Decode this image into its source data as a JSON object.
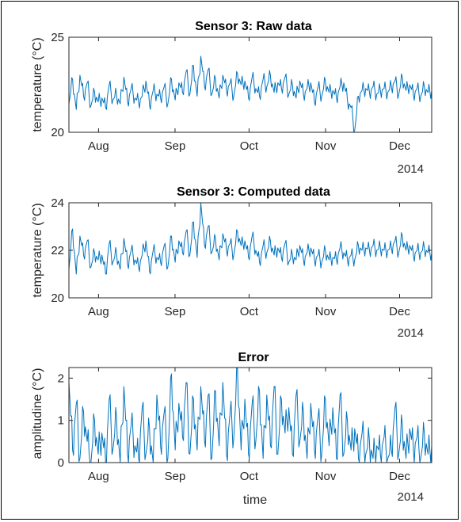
{
  "chart_data": [
    {
      "type": "line",
      "title": "Sensor 3: Raw data",
      "xlabel": "",
      "ylabel": "temperature (°C)",
      "ylim": [
        20,
        25
      ],
      "yticks": [
        20,
        25
      ],
      "xticks": [
        "Aug",
        "Sep",
        "Oct",
        "Nov",
        "Dec"
      ],
      "year_label": "2014",
      "xlim": [
        "2014-07-20",
        "2014-12-14"
      ],
      "grid": false,
      "color": "#0072BD",
      "series": [
        {
          "x_start": "2014-07-20",
          "x_end": "2014-12-14",
          "values": [
            21.5,
            22.8,
            21.2,
            23.0,
            21.9,
            22.6,
            21.4,
            22.1,
            21.6,
            21.8,
            21.3,
            22.5,
            21.7,
            22.0,
            21.5,
            22.9,
            21.6,
            22.3,
            21.8,
            21.6,
            21.9,
            22.7,
            21.4,
            22.2,
            22.0,
            21.8,
            22.4,
            21.5,
            22.8,
            21.7,
            22.6,
            22.1,
            23.2,
            22.0,
            23.5,
            21.9,
            24.0,
            22.4,
            23.3,
            22.0,
            22.8,
            21.8,
            23.0,
            22.2,
            22.6,
            21.9,
            23.1,
            22.5,
            22.7,
            21.8,
            22.9,
            22.3,
            21.9,
            22.8,
            22.4,
            23.0,
            22.1,
            22.6,
            22.3,
            22.9,
            22.0,
            22.5,
            21.8,
            22.7,
            22.0,
            22.3,
            22.6,
            21.6,
            22.4,
            21.9,
            22.7,
            22.1,
            22.2,
            21.8,
            22.4,
            22.6,
            21.7,
            21.3,
            20.1,
            21.9,
            22.2,
            22.3,
            22.1,
            22.4,
            22.0,
            22.2,
            22.3,
            22.1,
            22.4,
            22.7,
            22.0,
            22.9,
            22.2,
            22.5,
            22.0,
            22.3,
            21.9,
            22.4,
            22.1,
            22.2
          ]
        }
      ]
    },
    {
      "type": "line",
      "title": "Sensor 3: Computed data",
      "xlabel": "",
      "ylabel": "temperature (°C)",
      "ylim": [
        20,
        24
      ],
      "yticks": [
        20,
        22,
        24
      ],
      "xticks": [
        "Aug",
        "Sep",
        "Oct",
        "Nov",
        "Dec"
      ],
      "year_label": "2014",
      "xlim": [
        "2014-07-20",
        "2014-12-14"
      ],
      "grid": false,
      "color": "#0072BD",
      "series": [
        {
          "x_start": "2014-07-20",
          "x_end": "2014-12-14",
          "values": [
            21.2,
            22.9,
            21.0,
            22.6,
            21.8,
            22.4,
            21.3,
            21.9,
            21.6,
            21.8,
            21.0,
            22.3,
            21.5,
            21.9,
            21.2,
            22.5,
            21.4,
            22.0,
            21.6,
            21.3,
            21.8,
            22.4,
            21.1,
            22.0,
            21.7,
            21.5,
            22.2,
            21.3,
            22.6,
            21.5,
            22.4,
            21.9,
            22.8,
            21.8,
            23.2,
            21.7,
            24.0,
            22.2,
            23.0,
            21.9,
            22.5,
            21.6,
            22.7,
            22.0,
            22.3,
            21.8,
            22.8,
            22.2,
            22.4,
            21.7,
            22.6,
            22.0,
            21.5,
            22.2,
            21.9,
            22.4,
            21.8,
            22.1,
            21.7,
            22.3,
            21.5,
            21.8,
            21.6,
            22.2,
            21.6,
            21.9,
            22.1,
            21.6,
            21.8,
            21.5,
            22.0,
            21.6,
            21.7,
            21.6,
            22.1,
            21.9,
            21.6,
            21.8,
            21.6,
            22.2,
            22.0,
            22.1,
            22.0,
            22.2,
            22.0,
            22.1,
            22.0,
            22.0,
            22.1,
            22.4,
            21.9,
            22.6,
            22.0,
            22.2,
            21.8,
            22.0,
            21.9,
            22.1,
            21.9,
            21.9
          ]
        }
      ]
    },
    {
      "type": "line",
      "title": "Error",
      "xlabel": "time",
      "ylabel": "amplitudine (°C)",
      "ylim": [
        0,
        2.25
      ],
      "yticks": [
        0,
        1,
        2
      ],
      "xticks": [
        "Aug",
        "Sep",
        "Oct",
        "Nov",
        "Dec"
      ],
      "year_label": "2014",
      "xlim": [
        "2014-07-20",
        "2014-12-14"
      ],
      "grid": false,
      "color": "#0072BD",
      "series": [
        {
          "x_start": "2014-07-20",
          "x_end": "2014-12-14",
          "values": [
            1.9,
            0.3,
            1.4,
            0.1,
            1.2,
            0.5,
            0.0,
            1.0,
            0.2,
            0.7,
            0.0,
            1.5,
            0.3,
            1.1,
            0.0,
            1.8,
            0.2,
            0.9,
            0.4,
            0.1,
            1.3,
            0.2,
            0.8,
            0.0,
            1.6,
            0.4,
            1.2,
            0.1,
            2.1,
            0.3,
            1.4,
            0.6,
            1.9,
            0.2,
            1.5,
            0.3,
            1.8,
            0.5,
            1.6,
            0.1,
            1.7,
            0.4,
            1.9,
            0.2,
            1.2,
            0.6,
            2.25,
            0.3,
            1.5,
            0.2,
            1.4,
            0.5,
            1.7,
            0.1,
            1.6,
            0.4,
            1.8,
            0.2,
            1.5,
            0.7,
            1.3,
            0.2,
            1.6,
            0.5,
            1.2,
            0.1,
            1.4,
            0.3,
            1.1,
            0.2,
            1.5,
            0.4,
            1.3,
            0.1,
            1.6,
            0.2,
            1.0,
            0.3,
            0.8,
            0.1,
            0.7,
            0.2,
            0.5,
            0.1,
            0.4,
            0.2,
            0.6,
            0.1,
            0.3,
            1.3,
            0.2,
            0.9,
            0.1,
            0.8,
            0.3,
            0.6,
            0.1,
            0.7,
            0.2,
            0.4
          ]
        }
      ]
    }
  ]
}
